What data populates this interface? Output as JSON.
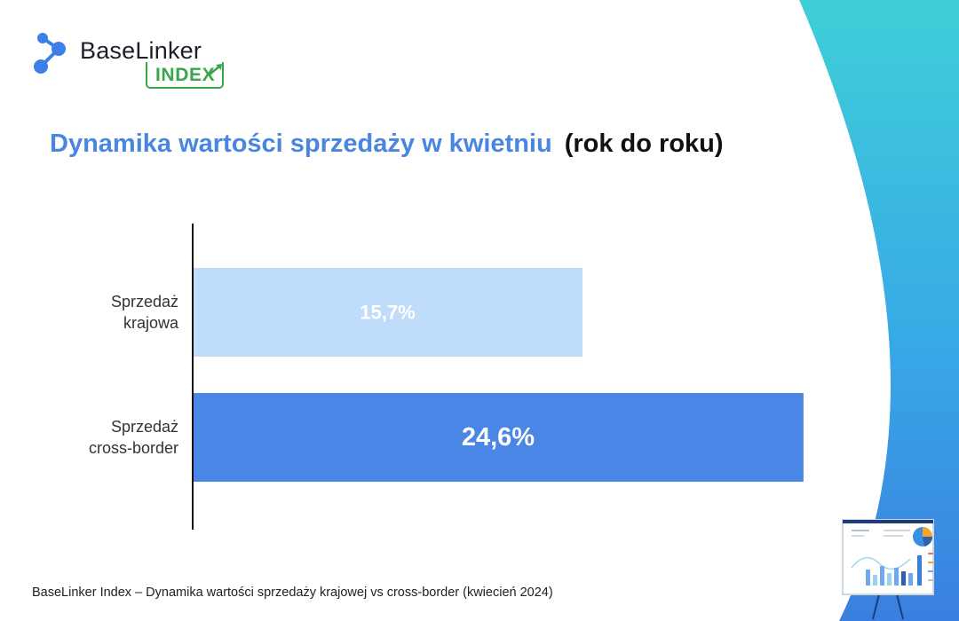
{
  "brand": {
    "name": "BaseLinker",
    "sub": "INDEX"
  },
  "title": {
    "main": "Dynamika wartości sprzedaży w kwietniu",
    "suffix": "(rok do roku)"
  },
  "footer": "BaseLinker Index – Dynamika wartości sprzedaży krajowej vs cross-border (kwiecień 2024)",
  "colors": {
    "accent": "#4a86e0",
    "bar_light": "#bfdcfb",
    "bar_dark": "#4a86e6",
    "brand_green": "#3aa64a"
  },
  "chart_data": {
    "type": "bar",
    "orientation": "horizontal",
    "categories": [
      [
        "Sprzedaż",
        "krajowa"
      ],
      [
        "Sprzedaż",
        "cross-border"
      ]
    ],
    "values": [
      15.7,
      24.6
    ],
    "value_labels": [
      "15,7%",
      "24,6%"
    ],
    "unit": "%",
    "xlim": [
      0,
      30
    ],
    "grid": false,
    "legend": "none"
  }
}
